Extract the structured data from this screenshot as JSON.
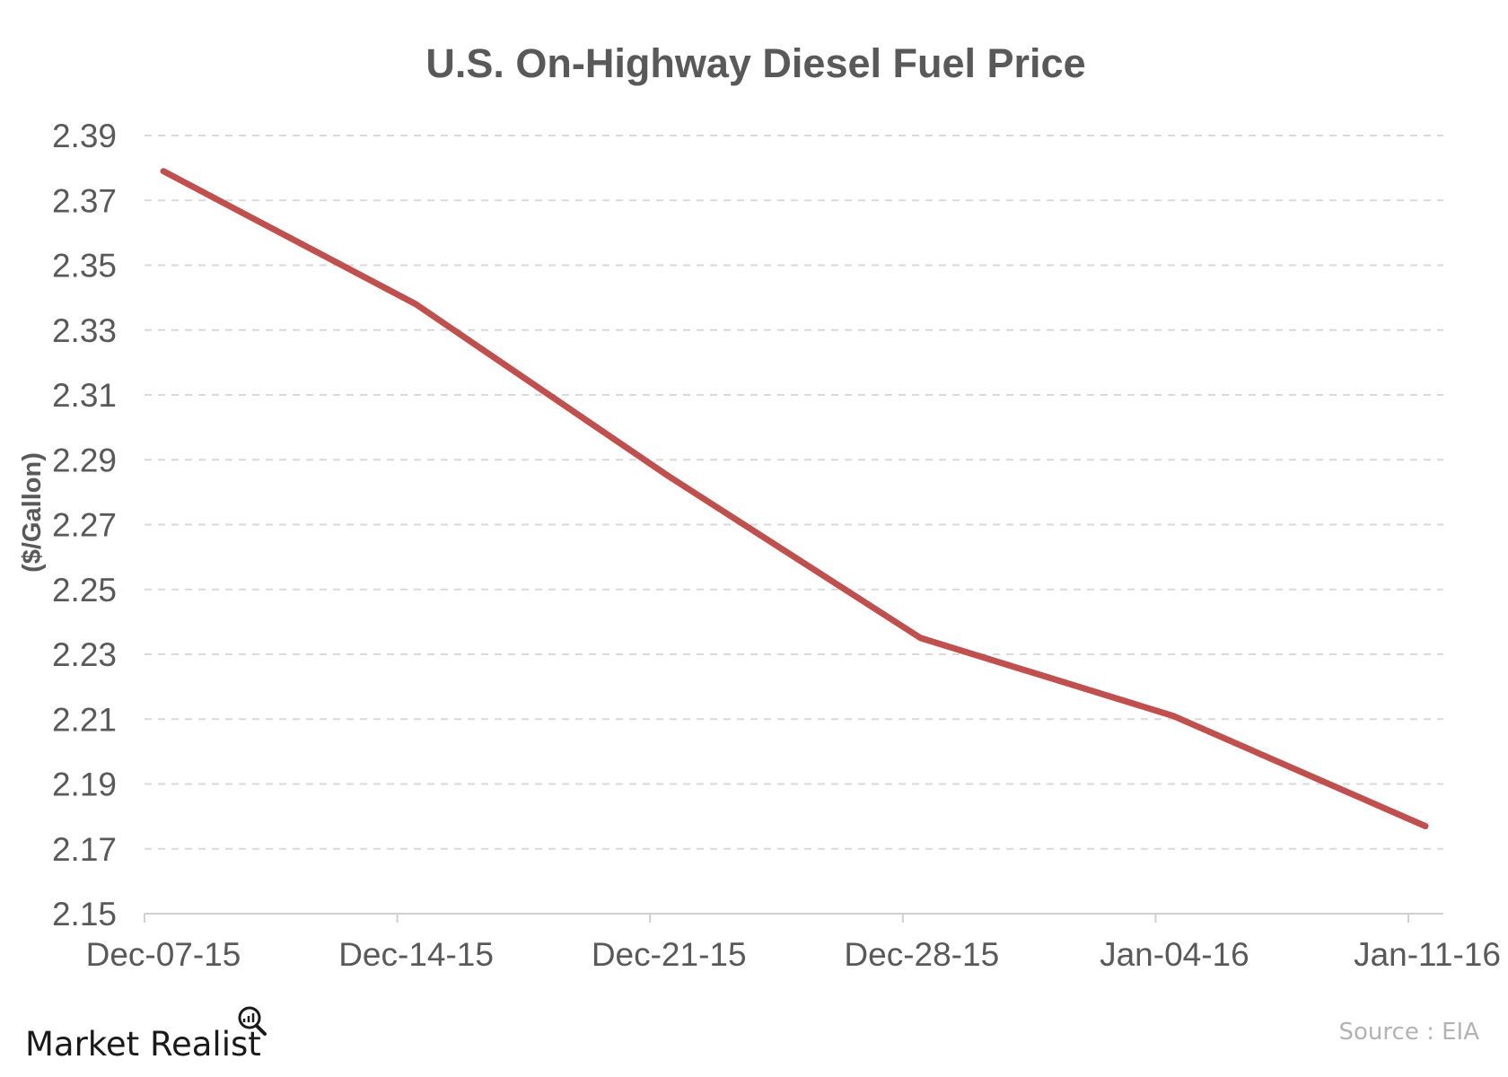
{
  "chart_data": {
    "type": "line",
    "title": "U.S. On-Highway Diesel Fuel Price",
    "xlabel": "",
    "ylabel": "($/Gallon)",
    "x": [
      "Dec-07-15",
      "Dec-14-15",
      "Dec-21-15",
      "Dec-28-15",
      "Jan-04-16",
      "Jan-11-16"
    ],
    "series": [
      {
        "name": "",
        "values": [
          2.379,
          2.338,
          2.285,
          2.235,
          2.211,
          2.177
        ]
      }
    ],
    "ylim": [
      2.15,
      2.39
    ],
    "yticks": [
      "2.15",
      "2.17",
      "2.19",
      "2.21",
      "2.23",
      "2.25",
      "2.27",
      "2.29",
      "2.31",
      "2.33",
      "2.35",
      "2.37",
      "2.39"
    ],
    "grid": true,
    "legend": "none"
  },
  "source": "Source : EIA",
  "brand": {
    "name": "Market Realist",
    "logo": "magnifier-chart-icon"
  },
  "colors": {
    "series": "#c0504d",
    "text": "#595959",
    "grid": "#d9d9d9"
  }
}
